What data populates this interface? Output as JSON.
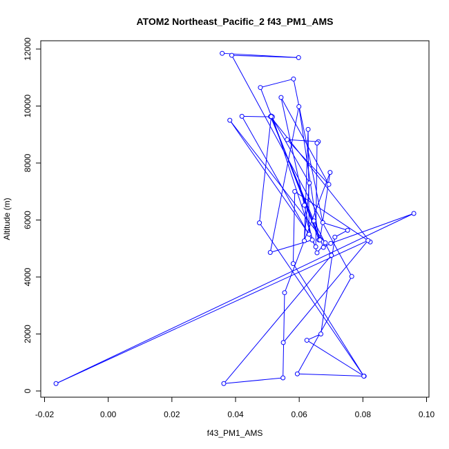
{
  "chart_data": {
    "type": "line",
    "title": "ATOM2 Northeast_Pacific_2 f43_PM1_AMS",
    "xlabel": "f43_PM1_AMS",
    "ylabel": "Altitude (m)",
    "xlim": [
      -0.02,
      0.1
    ],
    "ylim": [
      0,
      12000
    ],
    "x_ticks": [
      -0.02,
      0.0,
      0.02,
      0.04,
      0.06,
      0.08,
      0.1
    ],
    "x_tick_labels": [
      "-0.02",
      "0.00",
      "0.02",
      "0.04",
      "0.06",
      "0.08",
      "0.10"
    ],
    "y_ticks": [
      0,
      2000,
      4000,
      6000,
      8000,
      10000,
      12000
    ],
    "y_tick_labels": [
      "0",
      "2000",
      "4000",
      "6000",
      "8000",
      "10000",
      "12000"
    ],
    "grid": false,
    "series": [
      {
        "color": "#0000ff",
        "marker": "open-circle",
        "points": [
          [
            0.0358,
            11850
          ],
          [
            0.0598,
            11700
          ],
          [
            0.0388,
            11780
          ],
          [
            0.0765,
            4020
          ],
          [
            0.0594,
            600
          ],
          [
            0.0804,
            520
          ],
          [
            0.0624,
            1780
          ],
          [
            0.0668,
            2000
          ],
          [
            0.0712,
            5400
          ],
          [
            0.0752,
            5640
          ],
          [
            0.0674,
            5910
          ],
          [
            0.0582,
            10950
          ],
          [
            0.0478,
            10650
          ],
          [
            0.0662,
            5300
          ],
          [
            0.0599,
            9980
          ],
          [
            0.0509,
            4860
          ],
          [
            0.0641,
            5300
          ],
          [
            0.0616,
            6520
          ],
          [
            0.0543,
            10300
          ],
          [
            0.0693,
            7250
          ],
          [
            0.0562,
            8820
          ],
          [
            0.066,
            8750
          ],
          [
            0.0656,
            8700
          ],
          [
            0.0652,
            5060
          ],
          [
            0.042,
            9640
          ],
          [
            0.0516,
            9620
          ],
          [
            0.0656,
            4850
          ],
          [
            0.0682,
            5200
          ],
          [
            0.0382,
            9500
          ],
          [
            0.0631,
            5500
          ],
          [
            0.0628,
            9180
          ],
          [
            0.0616,
            5270
          ],
          [
            0.0632,
            7300
          ],
          [
            0.0512,
            9650
          ],
          [
            0.0665,
            5300
          ],
          [
            0.0697,
            7670
          ],
          [
            0.0554,
            3450
          ],
          [
            0.0549,
            460
          ],
          [
            0.0363,
            260
          ],
          [
            0.0701,
            4760
          ],
          [
            0.0646,
            5970
          ],
          [
            0.051,
            9630
          ],
          [
            0.0823,
            5230
          ],
          [
            0.0586,
            7000
          ],
          [
            0.0581,
            4470
          ],
          [
            0.0803,
            520
          ],
          [
            0.0475,
            5900
          ],
          [
            0.0512,
            9630
          ],
          [
            0.0676,
            5040
          ],
          [
            0.0699,
            5180
          ],
          [
            0.096,
            6230
          ],
          [
            -0.0164,
            260
          ],
          [
            0.0816,
            5280
          ],
          [
            0.055,
            1700
          ]
        ]
      }
    ]
  }
}
